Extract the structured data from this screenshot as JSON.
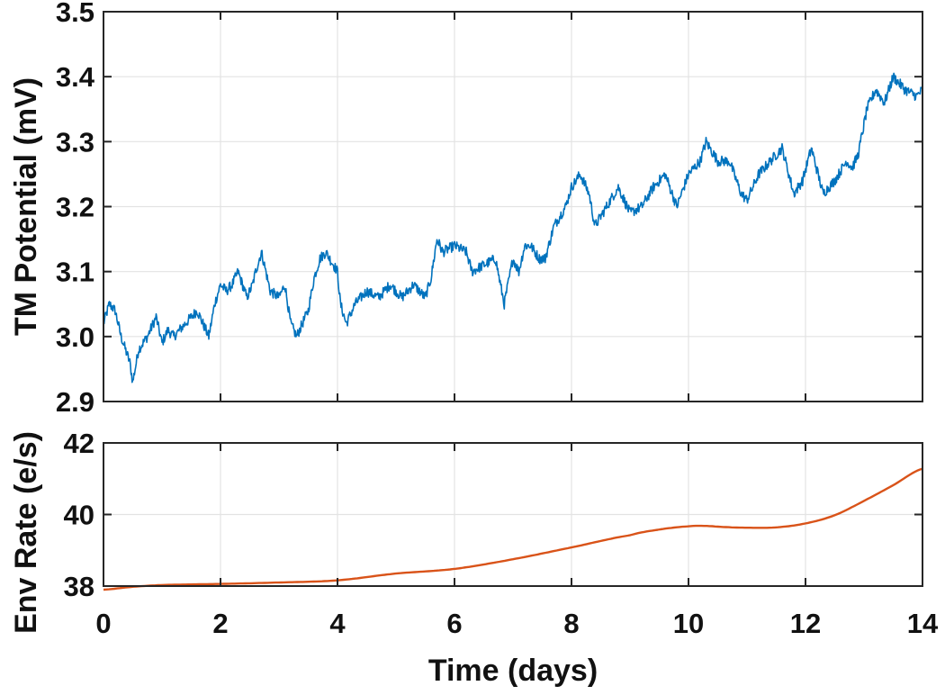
{
  "chart_data": [
    {
      "type": "line",
      "panel": "top",
      "title": "",
      "xlabel": "",
      "ylabel": "TM Potential (mV)",
      "xlim": [
        0,
        14
      ],
      "ylim": [
        2.9,
        3.5
      ],
      "xticks": [
        0,
        2,
        4,
        6,
        8,
        10,
        12,
        14
      ],
      "yticks": [
        2.9,
        3.0,
        3.1,
        3.2,
        3.3,
        3.4,
        3.5
      ],
      "ytick_labels": [
        "2.9",
        "3.0",
        "3.1",
        "3.2",
        "3.3",
        "3.4",
        "3.5"
      ],
      "grid": true,
      "series": [
        {
          "name": "TM Potential",
          "color": "#0072BD",
          "style": "noisy",
          "x": [
            0,
            0.1,
            0.2,
            0.3,
            0.45,
            0.5,
            0.6,
            0.75,
            0.9,
            1.0,
            1.1,
            1.2,
            1.4,
            1.6,
            1.8,
            1.9,
            2.0,
            2.1,
            2.2,
            2.3,
            2.45,
            2.55,
            2.6,
            2.7,
            2.85,
            3.0,
            3.1,
            3.2,
            3.3,
            3.5,
            3.6,
            3.7,
            3.8,
            4.0,
            4.05,
            4.15,
            4.3,
            4.5,
            4.7,
            4.9,
            5.1,
            5.3,
            5.5,
            5.6,
            5.7,
            5.8,
            6.0,
            6.2,
            6.3,
            6.5,
            6.7,
            6.85,
            7.0,
            7.1,
            7.2,
            7.3,
            7.45,
            7.55,
            7.7,
            7.9,
            8.0,
            8.15,
            8.3,
            8.4,
            8.6,
            8.8,
            9.0,
            9.2,
            9.4,
            9.6,
            9.8,
            10.0,
            10.2,
            10.3,
            10.5,
            10.7,
            10.9,
            11.0,
            11.2,
            11.4,
            11.6,
            11.8,
            11.95,
            12.1,
            12.3,
            12.5,
            12.7,
            12.8,
            12.9,
            13.05,
            13.2,
            13.35,
            13.5,
            13.7,
            13.9,
            14.0
          ],
          "y": [
            3.02,
            3.05,
            3.04,
            3.0,
            2.96,
            2.93,
            2.98,
            3.0,
            3.03,
            2.99,
            3.01,
            3.0,
            3.02,
            3.04,
            3.0,
            3.05,
            3.08,
            3.07,
            3.08,
            3.1,
            3.06,
            3.08,
            3.1,
            3.13,
            3.07,
            3.06,
            3.08,
            3.02,
            3.0,
            3.04,
            3.09,
            3.12,
            3.13,
            3.1,
            3.05,
            3.02,
            3.05,
            3.07,
            3.06,
            3.08,
            3.06,
            3.08,
            3.06,
            3.09,
            3.15,
            3.13,
            3.14,
            3.13,
            3.1,
            3.11,
            3.12,
            3.05,
            3.12,
            3.1,
            3.14,
            3.14,
            3.12,
            3.12,
            3.17,
            3.2,
            3.23,
            3.25,
            3.22,
            3.17,
            3.2,
            3.23,
            3.19,
            3.2,
            3.23,
            3.25,
            3.2,
            3.25,
            3.27,
            3.3,
            3.27,
            3.27,
            3.22,
            3.21,
            3.25,
            3.27,
            3.29,
            3.22,
            3.24,
            3.29,
            3.22,
            3.24,
            3.27,
            3.26,
            3.28,
            3.35,
            3.38,
            3.36,
            3.4,
            3.38,
            3.37,
            3.38
          ]
        }
      ]
    },
    {
      "type": "line",
      "panel": "bottom",
      "title": "",
      "xlabel": "Time (days)",
      "ylabel": "Env Rate (e/s)",
      "xlim": [
        0,
        14
      ],
      "ylim": [
        38,
        42
      ],
      "xticks": [
        0,
        2,
        4,
        6,
        8,
        10,
        12,
        14
      ],
      "xtick_labels": [
        "0",
        "2",
        "4",
        "6",
        "8",
        "10",
        "12",
        "14"
      ],
      "yticks": [
        38,
        40,
        42
      ],
      "ytick_labels": [
        "38",
        "40",
        "42"
      ],
      "grid": true,
      "series": [
        {
          "name": "Env Rate",
          "color": "#D95319",
          "style": "smooth",
          "x": [
            0,
            0.5,
            1,
            2,
            3,
            4,
            5,
            6,
            7,
            8,
            9,
            9.5,
            10,
            10.3,
            10.6,
            11,
            11.5,
            12,
            12.5,
            13,
            13.5,
            14
          ],
          "y": [
            37.9,
            37.98,
            38.03,
            38.06,
            38.1,
            38.16,
            38.35,
            38.48,
            38.75,
            39.08,
            39.42,
            39.58,
            39.67,
            39.68,
            39.65,
            39.63,
            39.64,
            39.75,
            39.98,
            40.38,
            40.82,
            41.28
          ]
        }
      ]
    }
  ],
  "labels": {
    "top_ylabel": "TM Potential (mV)",
    "bottom_ylabel": "Env Rate (e/s)",
    "xlabel": "Time (days)"
  }
}
